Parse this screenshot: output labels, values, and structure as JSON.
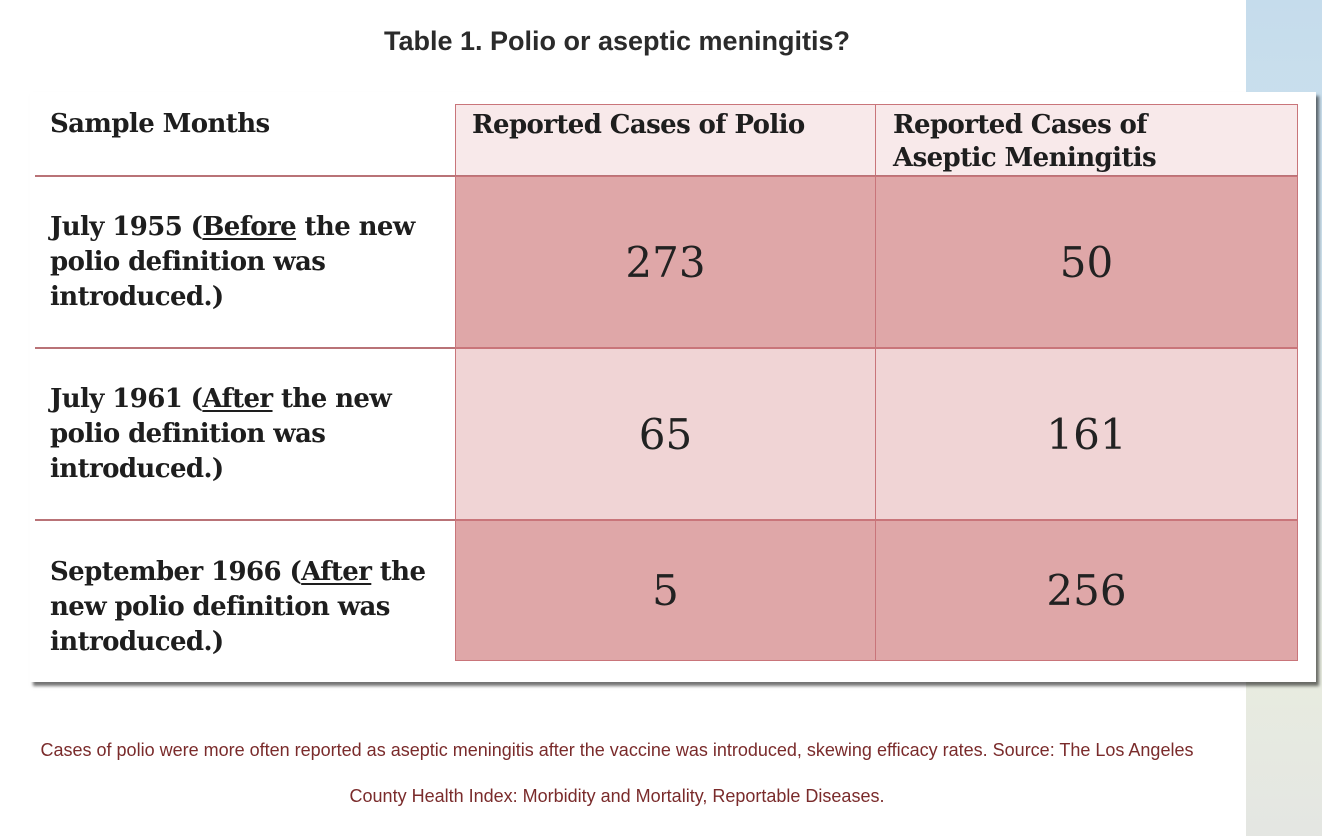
{
  "title": "Table 1. Polio or aseptic meningitis?",
  "colors": {
    "header_fill": "#f8e9ea",
    "dark_fill": "#dfa7a8",
    "light_fill": "#f0d4d5",
    "border": "#c9757a",
    "caption_text": "#7a2b2b"
  },
  "chart_data": {
    "type": "table",
    "title": "Table 1. Polio or aseptic meningitis?",
    "columns": [
      "Sample Months",
      "Reported Cases of Polio",
      "Reported Cases of Aseptic Meningitis"
    ],
    "rows": [
      {
        "month_date": "July 1955",
        "note_open": " (",
        "note_keyword": "Before",
        "note_rest": " the new polio definition was introduced.)",
        "polio": 273,
        "aseptic_meningitis": 50
      },
      {
        "month_date": "July 1961",
        "note_open": " (",
        "note_keyword": "After",
        "note_rest": " the new polio definition was introduced.)",
        "polio": 65,
        "aseptic_meningitis": 161
      },
      {
        "month_date": "September 1966",
        "note_open": " (",
        "note_keyword": "After",
        "note_rest": " the new polio definition was introduced.)",
        "polio": 5,
        "aseptic_meningitis": 256
      }
    ]
  },
  "caption": {
    "line1": "Cases of polio were more often reported as aseptic meningitis after the vaccine was introduced, skewing efficacy rates. Source: The Los Angeles",
    "line2": "County Health Index: Morbidity and Mortality, Reportable Diseases."
  }
}
